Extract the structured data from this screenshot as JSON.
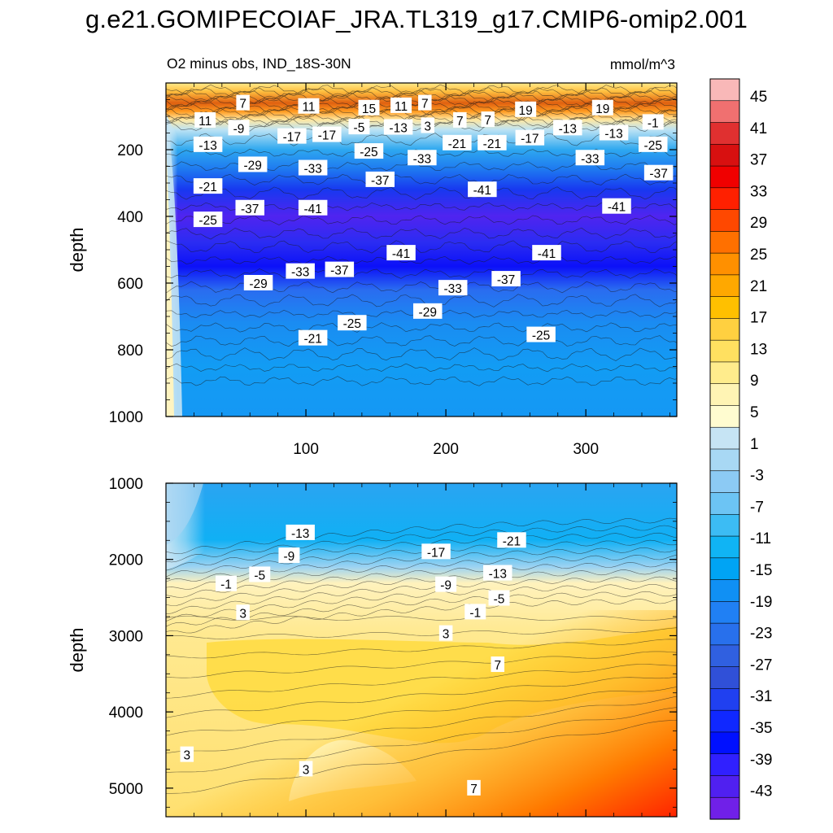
{
  "title": "g.e21.GOMIPECOIAF_JRA.TL319_g17.CMIP6-omip2.001",
  "chart_data": [
    {
      "type": "heatmap",
      "subtitle": "O2 minus obs, IND_18S-30N",
      "units": "mmol/m^3",
      "ylabel": "depth",
      "xlim": [
        0,
        365
      ],
      "ylim": [
        1000,
        0
      ],
      "x_ticks": [
        "100",
        "200",
        "300"
      ],
      "y_ticks": [
        "200",
        "400",
        "600",
        "800",
        "1000"
      ],
      "contour_labels": [
        {
          "text": "7",
          "x": 55,
          "y": 60
        },
        {
          "text": "11",
          "x": 102,
          "y": 70
        },
        {
          "text": "15",
          "x": 145,
          "y": 75
        },
        {
          "text": "11",
          "x": 168,
          "y": 68
        },
        {
          "text": "7",
          "x": 185,
          "y": 60
        },
        {
          "text": "19",
          "x": 257,
          "y": 80
        },
        {
          "text": "19",
          "x": 312,
          "y": 75
        },
        {
          "text": "11",
          "x": 28,
          "y": 112
        },
        {
          "text": "-9",
          "x": 52,
          "y": 135
        },
        {
          "text": "-5",
          "x": 138,
          "y": 132
        },
        {
          "text": "-13",
          "x": 166,
          "y": 133
        },
        {
          "text": "3",
          "x": 187,
          "y": 128
        },
        {
          "text": "7",
          "x": 210,
          "y": 112
        },
        {
          "text": "7",
          "x": 230,
          "y": 110
        },
        {
          "text": "-13",
          "x": 287,
          "y": 135
        },
        {
          "text": "-13",
          "x": 320,
          "y": 150
        },
        {
          "text": "-1",
          "x": 348,
          "y": 118
        },
        {
          "text": "-17",
          "x": 90,
          "y": 160
        },
        {
          "text": "-17",
          "x": 115,
          "y": 155
        },
        {
          "text": "-21",
          "x": 208,
          "y": 180
        },
        {
          "text": "-21",
          "x": 233,
          "y": 180
        },
        {
          "text": "-17",
          "x": 260,
          "y": 165
        },
        {
          "text": "-13",
          "x": 30,
          "y": 185
        },
        {
          "text": "-25",
          "x": 145,
          "y": 205
        },
        {
          "text": "-25",
          "x": 348,
          "y": 185
        },
        {
          "text": "-29",
          "x": 62,
          "y": 245
        },
        {
          "text": "-33",
          "x": 105,
          "y": 255
        },
        {
          "text": "-33",
          "x": 183,
          "y": 225
        },
        {
          "text": "-33",
          "x": 303,
          "y": 225
        },
        {
          "text": "-37",
          "x": 153,
          "y": 290
        },
        {
          "text": "-37",
          "x": 352,
          "y": 270
        },
        {
          "text": "-21",
          "x": 30,
          "y": 310
        },
        {
          "text": "-41",
          "x": 226,
          "y": 320
        },
        {
          "text": "-37",
          "x": 60,
          "y": 375
        },
        {
          "text": "-41",
          "x": 105,
          "y": 375
        },
        {
          "text": "-41",
          "x": 322,
          "y": 370
        },
        {
          "text": "-25",
          "x": 30,
          "y": 410
        },
        {
          "text": "-41",
          "x": 168,
          "y": 510
        },
        {
          "text": "-41",
          "x": 272,
          "y": 510
        },
        {
          "text": "-33",
          "x": 96,
          "y": 565
        },
        {
          "text": "-37",
          "x": 124,
          "y": 560
        },
        {
          "text": "-37",
          "x": 243,
          "y": 588
        },
        {
          "text": "-29",
          "x": 66,
          "y": 600
        },
        {
          "text": "-33",
          "x": 205,
          "y": 615
        },
        {
          "text": "-29",
          "x": 187,
          "y": 685
        },
        {
          "text": "-25",
          "x": 133,
          "y": 720
        },
        {
          "text": "-25",
          "x": 268,
          "y": 755
        },
        {
          "text": "-21",
          "x": 105,
          "y": 765
        }
      ]
    },
    {
      "type": "heatmap",
      "ylabel": "depth",
      "xlim": [
        0,
        365
      ],
      "ylim": [
        5375,
        1000
      ],
      "y_ticks": [
        "1000",
        "2000",
        "3000",
        "4000",
        "5000"
      ],
      "contour_labels": [
        {
          "text": "-13",
          "x": 96,
          "y": 1650
        },
        {
          "text": "-21",
          "x": 247,
          "y": 1750
        },
        {
          "text": "-17",
          "x": 193,
          "y": 1900
        },
        {
          "text": "-9",
          "x": 88,
          "y": 1950
        },
        {
          "text": "-5",
          "x": 67,
          "y": 2200
        },
        {
          "text": "-13",
          "x": 237,
          "y": 2180
        },
        {
          "text": "-9",
          "x": 200,
          "y": 2330
        },
        {
          "text": "-1",
          "x": 43,
          "y": 2320
        },
        {
          "text": "-5",
          "x": 238,
          "y": 2510
        },
        {
          "text": "-1",
          "x": 221,
          "y": 2690
        },
        {
          "text": "3",
          "x": 55,
          "y": 2700
        },
        {
          "text": "3",
          "x": 200,
          "y": 2970
        },
        {
          "text": "7",
          "x": 237,
          "y": 3380
        },
        {
          "text": "3",
          "x": 15,
          "y": 4560
        },
        {
          "text": "3",
          "x": 100,
          "y": 4750
        },
        {
          "text": "7",
          "x": 220,
          "y": 5000
        }
      ]
    }
  ],
  "colorbar": {
    "labels": [
      "45",
      "41",
      "37",
      "33",
      "29",
      "25",
      "21",
      "17",
      "13",
      "9",
      "5",
      "1",
      "-3",
      "-7",
      "-11",
      "-15",
      "-19",
      "-23",
      "-27",
      "-31",
      "-35",
      "-39",
      "-43"
    ],
    "colors": [
      "#f9b8b8",
      "#f07070",
      "#e03030",
      "#d81010",
      "#f00000",
      "#ff2000",
      "#ff4800",
      "#ff7000",
      "#ff9000",
      "#ffa800",
      "#ffc000",
      "#ffd040",
      "#ffe060",
      "#ffec8c",
      "#fff4b4",
      "#fffcd0",
      "#c6e4f4",
      "#a8d8f4",
      "#8ccaf4",
      "#6cc4f4",
      "#3cbcf4",
      "#10b4f4",
      "#00a4f4",
      "#1090f4",
      "#2080f4",
      "#2870ec",
      "#3060e0",
      "#3050d8",
      "#2040f0",
      "#1028ff",
      "#0010ff",
      "#3020ff",
      "#5020f0",
      "#7020e8"
    ]
  }
}
